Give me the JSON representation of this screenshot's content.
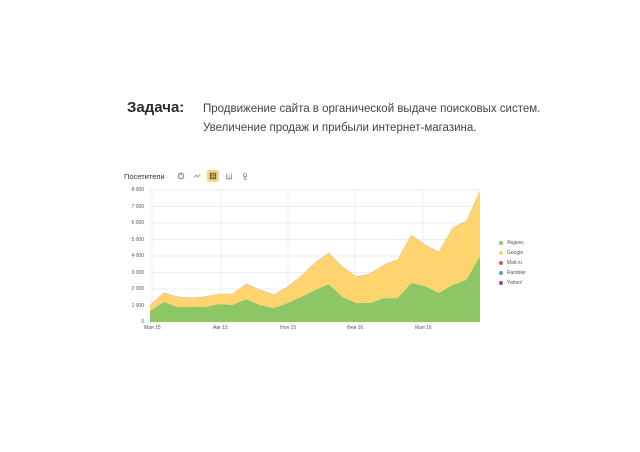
{
  "task": {
    "label": "Задача:",
    "lines": [
      "Продвижение сайта в органической выдаче поисковых систем.",
      "Увеличение продаж и прибыли интернет-магазина."
    ]
  },
  "toolbar": {
    "title": "Посетители",
    "buttons": [
      {
        "name": "pie-chart-icon",
        "active": false
      },
      {
        "name": "line-chart-icon",
        "active": false
      },
      {
        "name": "stacked-area-chart-icon",
        "active": true
      },
      {
        "name": "bar-chart-icon",
        "active": false
      },
      {
        "name": "map-pin-icon",
        "active": false
      }
    ]
  },
  "colors": {
    "yandex": "#8cc665",
    "google": "#fdd46e",
    "mailru": "#f0504a",
    "rambler": "#4aa3df",
    "yahoo": "#8e44ad",
    "active_button": "#fbd97a",
    "grid": "#e6e6e6"
  },
  "chart_data": {
    "type": "area",
    "stacked": true,
    "title": "Посетители",
    "xlabel": "",
    "ylabel": "",
    "ylim": [
      0,
      8000
    ],
    "yticks": [
      "0",
      "1 000",
      "2 000",
      "3 000",
      "4 000",
      "5 000",
      "6 000",
      "7 000",
      "8 000"
    ],
    "xtick_labels": [
      "Мая 15",
      "Авг 15",
      "Ноя 15",
      "Фев 16",
      "Мая 16"
    ],
    "grid": true,
    "legend_position": "right",
    "series": [
      {
        "name": "Яндекс",
        "color": "#8cc665",
        "values": [
          670,
          1210,
          910,
          910,
          910,
          1090,
          1030,
          1390,
          1030,
          850,
          1150,
          1520,
          1940,
          2300,
          1520,
          1150,
          1150,
          1450,
          1450,
          2360,
          2180,
          1760,
          2240,
          2550,
          4000
        ]
      },
      {
        "name": "Google",
        "color": "#fdd46e",
        "values": [
          360,
          550,
          610,
          540,
          610,
          610,
          670,
          910,
          910,
          790,
          970,
          1270,
          1640,
          1880,
          1810,
          1580,
          1760,
          2000,
          2310,
          2910,
          2490,
          2480,
          3460,
          3570,
          3940
        ]
      },
      {
        "name": "Mail.ru",
        "color": "#f0504a",
        "values": [
          10,
          10,
          10,
          10,
          10,
          10,
          10,
          10,
          10,
          10,
          10,
          10,
          10,
          10,
          10,
          10,
          10,
          10,
          10,
          10,
          10,
          10,
          10,
          10,
          10
        ]
      },
      {
        "name": "Rambler",
        "color": "#4aa3df",
        "values": [
          5,
          5,
          5,
          5,
          5,
          5,
          5,
          5,
          5,
          5,
          5,
          5,
          5,
          5,
          5,
          5,
          5,
          5,
          5,
          5,
          5,
          5,
          5,
          5,
          5
        ]
      },
      {
        "name": "Yahoo!",
        "color": "#8e44ad",
        "values": [
          3,
          3,
          3,
          3,
          3,
          3,
          3,
          3,
          3,
          3,
          3,
          3,
          3,
          3,
          3,
          3,
          3,
          3,
          3,
          3,
          3,
          3,
          3,
          3,
          3
        ]
      }
    ]
  }
}
